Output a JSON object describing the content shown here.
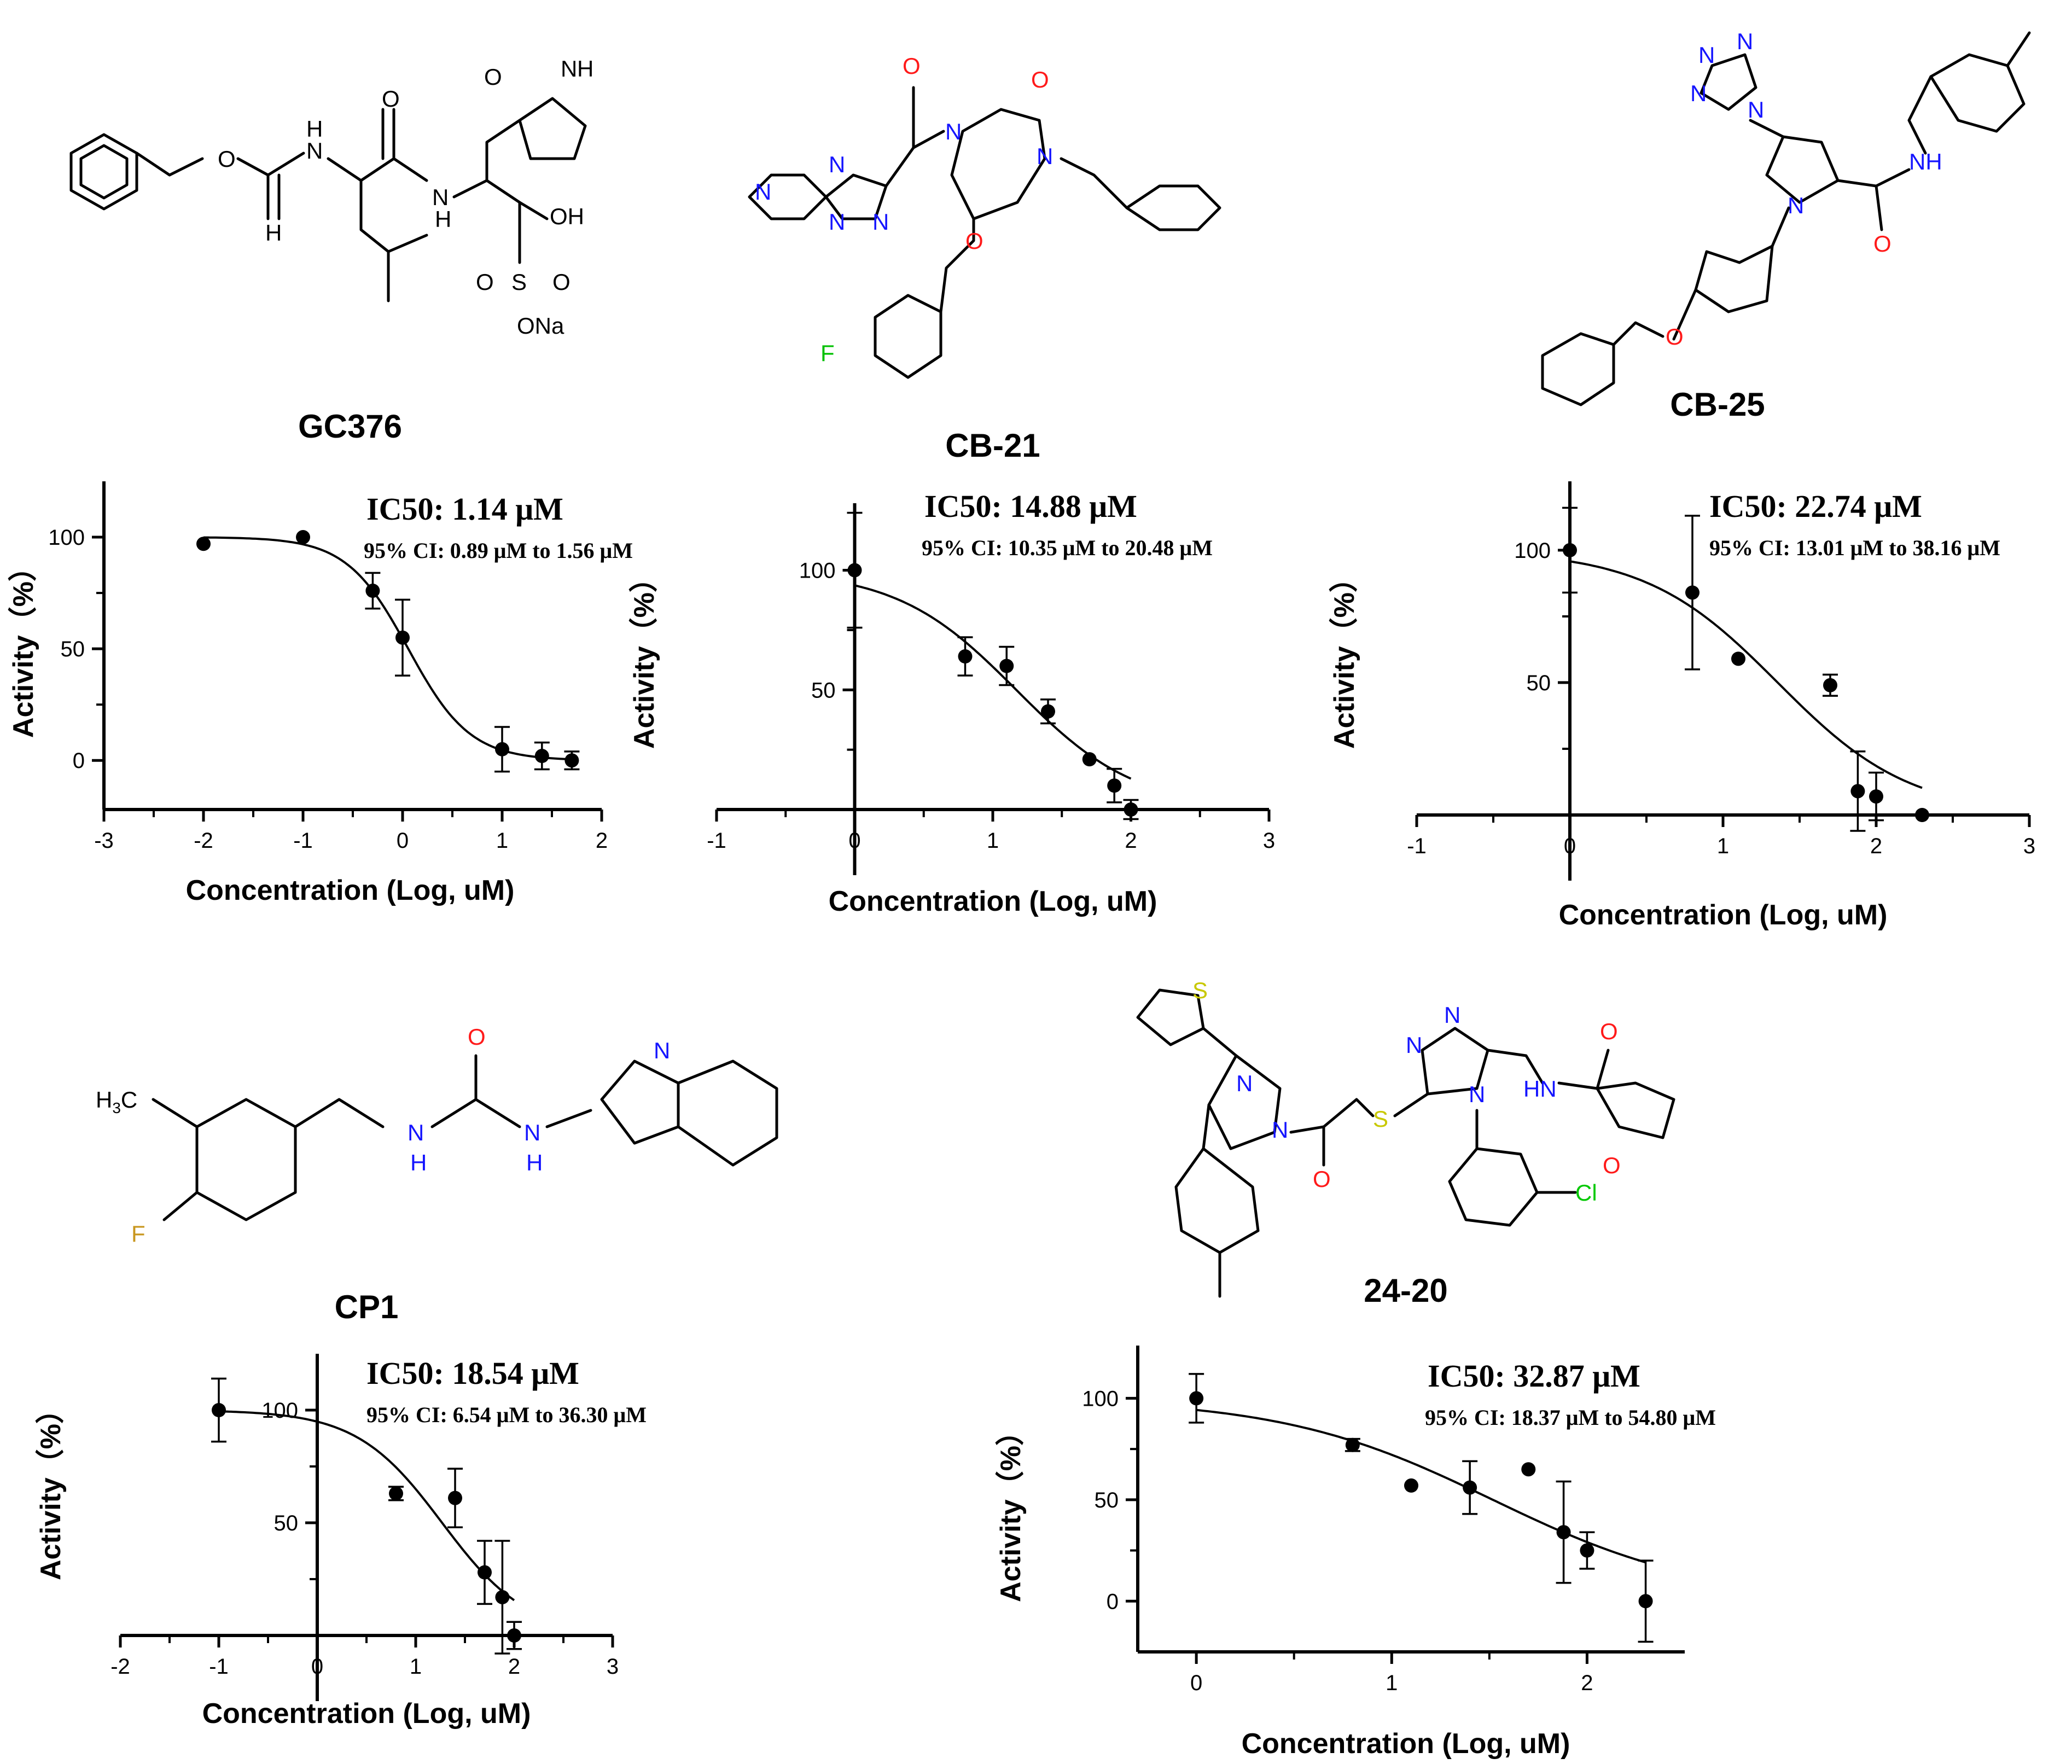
{
  "compounds": [
    "GC376",
    "CB-21",
    "CB-25",
    "CP1",
    "24-20"
  ],
  "structure_atoms": {
    "gc376": [
      "O",
      "H",
      "N",
      "N",
      "O",
      "O",
      "N",
      "H",
      "OH",
      "S",
      "O",
      "O",
      "ONa",
      "O",
      "H"
    ],
    "cb21": [
      "O",
      "O",
      "N",
      "N",
      "N",
      "N",
      "N",
      "N",
      "O",
      "F"
    ],
    "cb25": [
      "N",
      "N",
      "N",
      "N",
      "N",
      "NH",
      "O"
    ],
    "cp1": [
      "O",
      "N",
      "N",
      "N",
      "H",
      "H",
      "F"
    ],
    "c2420": [
      "S",
      "N",
      "N",
      "O",
      "S",
      "N",
      "N",
      "N",
      "HN",
      "O",
      "O",
      "Cl"
    ],
    "cp1_methyl": {
      "main": "H",
      "sub": "3",
      "tail": "C"
    }
  },
  "colors": {
    "carbon": "#000000",
    "nitrogen": "#1515ff",
    "oxygen": "#ff1a1a",
    "fluorine": "#00c000",
    "fluorine_cp1": "#c8961e",
    "sulfur": "#c8c800",
    "chlorine": "#00c800"
  },
  "chart_data": [
    {
      "type": "scatter",
      "compound": "GC376",
      "ic50_label": "IC50: 1.14 μM",
      "ci_label": "95% CI: 0.89 μM to 1.56 μM",
      "xlabel": "Concentration (Log, uM)",
      "ylabel": "Activity（%）",
      "xlim": [
        -3,
        2
      ],
      "ylim": [
        -22,
        125
      ],
      "xticks": [
        "-3",
        "-2",
        "-1",
        "0",
        "1",
        "2"
      ],
      "yticks": [
        "0",
        "50",
        "100"
      ],
      "points": [
        {
          "x": -2,
          "y": 97,
          "err": 0
        },
        {
          "x": -1,
          "y": 100,
          "err": 0
        },
        {
          "x": -0.3,
          "y": 76,
          "err": 8
        },
        {
          "x": 0,
          "y": 55,
          "err": 17
        },
        {
          "x": 1,
          "y": 5,
          "err": 10
        },
        {
          "x": 1.4,
          "y": 2,
          "err": 6
        },
        {
          "x": 1.7,
          "y": 0,
          "err": 4
        }
      ],
      "fit": {
        "top": 100,
        "bottom": 0,
        "logIC50": 0.057,
        "hill": 1.4,
        "x_from": -2,
        "x_to": 1.7
      }
    },
    {
      "type": "scatter",
      "compound": "CB-21",
      "ic50_label": "IC50: 14.88 μM",
      "ci_label": "95% CI: 10.35 μM to 20.48 μM",
      "xlabel": "Concentration (Log, uM)",
      "ylabel": "Activity（%）",
      "xlim": [
        -1,
        3
      ],
      "ylim": [
        0,
        128
      ],
      "xticks": [
        "-1",
        "0",
        "1",
        "2",
        "3"
      ],
      "yticks": [
        "50",
        "100"
      ],
      "points": [
        {
          "x": 0,
          "y": 100,
          "err": 24
        },
        {
          "x": 0.8,
          "y": 64,
          "err": 8
        },
        {
          "x": 1.1,
          "y": 60,
          "err": 8
        },
        {
          "x": 1.4,
          "y": 41,
          "err": 5
        },
        {
          "x": 1.7,
          "y": 21,
          "err": 0
        },
        {
          "x": 1.88,
          "y": 10,
          "err": 7
        },
        {
          "x": 2,
          "y": 0,
          "err": 4
        }
      ],
      "fit": {
        "top": 100,
        "bottom": 0,
        "logIC50": 1.17,
        "hill": 1.0,
        "x_from": 0,
        "x_to": 2
      }
    },
    {
      "type": "scatter",
      "compound": "CB-25",
      "ic50_label": "IC50: 22.74 μM",
      "ci_label": "95% CI: 13.01 μM to 38.16 μM",
      "xlabel": "Concentration (Log, uM)",
      "ylabel": "Activity（%）",
      "xlim": [
        -1,
        3
      ],
      "ylim": [
        0,
        126
      ],
      "xticks": [
        "-1",
        "0",
        "1",
        "2",
        "3"
      ],
      "yticks": [
        "50",
        "100"
      ],
      "points": [
        {
          "x": 0,
          "y": 100,
          "err": 16
        },
        {
          "x": 0.8,
          "y": 84,
          "err": 29
        },
        {
          "x": 1.1,
          "y": 59,
          "err": 0
        },
        {
          "x": 1.7,
          "y": 49,
          "err": 4
        },
        {
          "x": 1.88,
          "y": 9,
          "err": 15
        },
        {
          "x": 2,
          "y": 7,
          "err": 9
        },
        {
          "x": 2.3,
          "y": 0,
          "err": 0
        }
      ],
      "fit": {
        "top": 100,
        "bottom": 0,
        "logIC50": 1.357,
        "hill": 1.0,
        "x_from": 0,
        "x_to": 2.3
      }
    },
    {
      "type": "scatter",
      "compound": "CP1",
      "ic50_label": "IC50: 18.54 μM",
      "ci_label": "95% CI: 6.54 μM to 36.30 μM",
      "xlabel": "Concentration (Log, uM)",
      "ylabel": "Activity（%）",
      "xlim": [
        -2,
        3
      ],
      "ylim": [
        0,
        125
      ],
      "xticks": [
        "-2",
        "-1",
        "0",
        "1",
        "2",
        "3"
      ],
      "yticks": [
        "50",
        "100"
      ],
      "points": [
        {
          "x": -1,
          "y": 100,
          "err": 14
        },
        {
          "x": 0.8,
          "y": 63,
          "err": 3
        },
        {
          "x": 1.4,
          "y": 61,
          "err": 13
        },
        {
          "x": 1.7,
          "y": 28,
          "err": 14
        },
        {
          "x": 1.88,
          "y": 17,
          "err": 25
        },
        {
          "x": 2,
          "y": 0,
          "err": 6
        }
      ],
      "fit": {
        "top": 100,
        "bottom": 0,
        "logIC50": 1.268,
        "hill": 1.0,
        "x_from": -1,
        "x_to": 2
      }
    },
    {
      "type": "scatter",
      "compound": "24-20",
      "ic50_label": "IC50: 32.87 μM",
      "ci_label": "95% CI: 18.37 μM to 54.80 μM",
      "xlabel": "Concentration (Log, uM)",
      "ylabel": "Activity（%）",
      "xlim": [
        -0.3,
        2.5
      ],
      "ylim": [
        -25,
        126
      ],
      "xticks": [
        "0",
        "1",
        "2"
      ],
      "yticks": [
        "0",
        "50",
        "100"
      ],
      "points": [
        {
          "x": 0,
          "y": 100,
          "err": 12
        },
        {
          "x": 0.8,
          "y": 77,
          "err": 3
        },
        {
          "x": 1.1,
          "y": 57,
          "err": 0
        },
        {
          "x": 1.4,
          "y": 56,
          "err": 13
        },
        {
          "x": 1.7,
          "y": 65,
          "err": 0
        },
        {
          "x": 1.88,
          "y": 34,
          "err": 25
        },
        {
          "x": 2,
          "y": 25,
          "err": 9
        },
        {
          "x": 2.3,
          "y": 0,
          "err": 20
        }
      ],
      "fit": {
        "top": 100,
        "bottom": 0,
        "logIC50": 1.517,
        "hill": 0.8,
        "x_from": 0,
        "x_to": 2.3
      }
    }
  ]
}
